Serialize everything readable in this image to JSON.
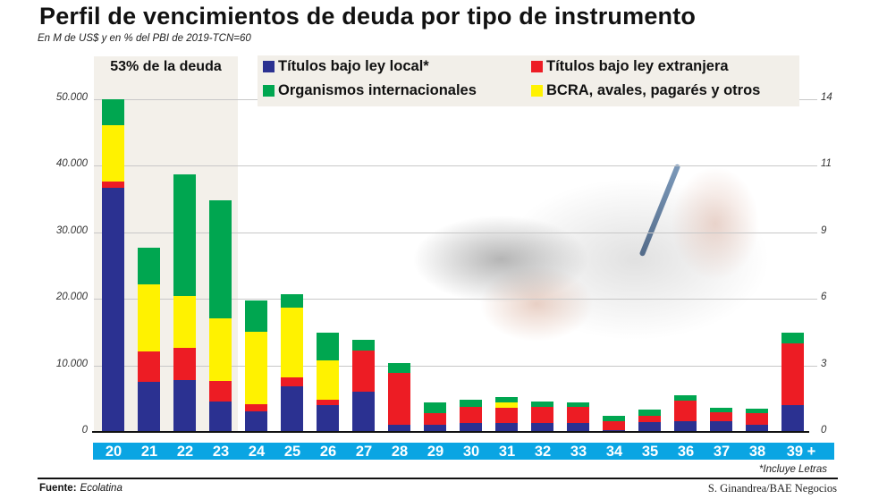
{
  "header": {
    "title": "Perfil de vencimientos de deuda por tipo de instrumento",
    "subtitle": "En M de US$ y en % del PBI de 2019-TCN=60"
  },
  "highlight": {
    "label": "53% de la deuda",
    "color": "#f3f0ea"
  },
  "legend": {
    "items": [
      {
        "label": "Títulos bajo ley local*",
        "color": "#2b3191",
        "icon": "blue-square-icon"
      },
      {
        "label": "Títulos bajo ley extranjera",
        "color": "#ed1c24",
        "icon": "red-square-icon"
      },
      {
        "label": "Organismos internacionales",
        "color": "#00a650",
        "icon": "green-square-icon"
      },
      {
        "label": "BCRA, avales, pagarés y otros",
        "color": "#fff200",
        "icon": "yellow-square-icon"
      }
    ]
  },
  "axes": {
    "left_ticks": [
      "50.000",
      "40.000",
      "30.000",
      "20.000",
      "10.000",
      "0"
    ],
    "right_ticks": [
      "14",
      "11",
      "9",
      "6",
      "3",
      "0"
    ],
    "x_ticks": [
      "20",
      "21",
      "22",
      "23",
      "24",
      "25",
      "26",
      "27",
      "28",
      "29",
      "30",
      "31",
      "32",
      "33",
      "34",
      "35",
      "36",
      "37",
      "38",
      "39 +"
    ],
    "xaxis_color": "#0aa5e3"
  },
  "footer": {
    "note": "*Incluye Letras",
    "source_label": "Fuente:",
    "source_value": "Ecolatina",
    "credit": "S. Ginandrea/BAE Negocios"
  },
  "chart_data": {
    "type": "bar",
    "stacked": true,
    "title": "Perfil de vencimientos de deuda por tipo de instrumento",
    "subtitle": "En M de US$ y en % del PBI de 2019-TCN=60",
    "xlabel": "",
    "ylabel": "M de US$",
    "ylabel_right": "% del PBI",
    "ylim": [
      0,
      50000
    ],
    "ylim_right": [
      0,
      14
    ],
    "grid": true,
    "legend_position": "top",
    "annotations": [
      "53% de la deuda (años 20-23)",
      "*Incluye Letras"
    ],
    "categories": [
      "20",
      "21",
      "22",
      "23",
      "24",
      "25",
      "26",
      "27",
      "28",
      "29",
      "30",
      "31",
      "32",
      "33",
      "34",
      "35",
      "36",
      "37",
      "38",
      "39 +"
    ],
    "series": [
      {
        "name": "Títulos bajo ley local*",
        "color": "#2b3191",
        "values": [
          36700,
          7500,
          7800,
          4600,
          3100,
          6900,
          4000,
          6000,
          1100,
          1100,
          1300,
          1300,
          1300,
          1300,
          300,
          1500,
          1600,
          1600,
          1100,
          4000
        ]
      },
      {
        "name": "Títulos bajo ley extranjera",
        "color": "#ed1c24",
        "values": [
          900,
          4600,
          4800,
          3100,
          1100,
          1300,
          900,
          6200,
          7800,
          1700,
          2400,
          2400,
          2400,
          2400,
          1300,
          900,
          3100,
          1300,
          1700,
          9300
        ]
      },
      {
        "name": "BCRA, avales, pagarés y otros",
        "color": "#fff200",
        "values": [
          8500,
          10100,
          7800,
          9400,
          10900,
          10500,
          5800,
          0,
          0,
          0,
          0,
          800,
          0,
          0,
          0,
          0,
          0,
          0,
          0,
          0
        ]
      },
      {
        "name": "Organismos internacionales",
        "color": "#00a650",
        "values": [
          3900,
          5500,
          18300,
          17700,
          4600,
          2000,
          4200,
          1600,
          1500,
          1600,
          1200,
          800,
          900,
          800,
          800,
          900,
          800,
          800,
          700,
          1600
        ]
      }
    ]
  }
}
